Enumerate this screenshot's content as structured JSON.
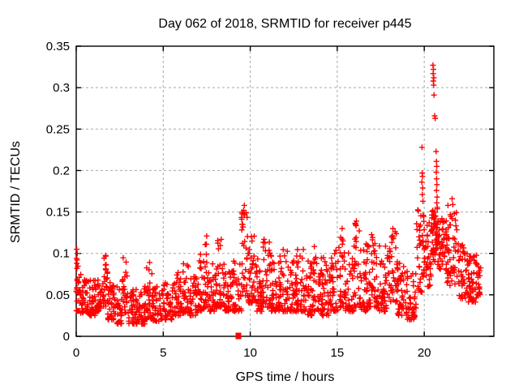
{
  "chart_data": {
    "type": "scatter",
    "title": "Day 062 of 2018, SRMTID for receiver p445",
    "xlabel": "GPS time / hours",
    "ylabel": "SRMTID / TECUs",
    "xlim": [
      0,
      24
    ],
    "ylim": [
      0,
      0.35
    ],
    "xticks": {
      "values": [
        0,
        5,
        10,
        15,
        20
      ],
      "labels": [
        "0",
        "5",
        "10",
        "15",
        "20"
      ]
    },
    "yticks": {
      "values": [
        0,
        0.05,
        0.1,
        0.15,
        0.2,
        0.25,
        0.3,
        0.35
      ],
      "labels": [
        "0",
        "0.05",
        "0.1",
        "0.15",
        "0.2",
        "0.25",
        "0.3",
        "0.35"
      ]
    },
    "grid": true,
    "legend": "none",
    "marker": "plus",
    "marker_color": "#ff0000",
    "grid_color": "#a8a8a8",
    "border_color": "#000000",
    "background_color": "#ffffff",
    "seed": 42,
    "clusters_format": "[x_start_hours, x_end_hours, point_count, y_min_TECUs, y_max_TECUs, crowding_exponent_toward_y_min]",
    "clusters": [
      [
        0.0,
        0.2,
        22,
        0.03,
        0.105,
        1.5
      ],
      [
        0.2,
        0.7,
        42,
        0.028,
        0.075,
        1.8
      ],
      [
        0.7,
        1.2,
        40,
        0.025,
        0.068,
        1.8
      ],
      [
        1.2,
        1.55,
        26,
        0.03,
        0.072,
        1.8
      ],
      [
        1.55,
        1.8,
        26,
        0.035,
        0.1,
        1.6
      ],
      [
        1.8,
        2.3,
        40,
        0.02,
        0.068,
        1.8
      ],
      [
        2.3,
        2.65,
        26,
        0.015,
        0.06,
        1.8
      ],
      [
        2.65,
        2.95,
        26,
        0.028,
        0.097,
        1.6
      ],
      [
        2.95,
        3.45,
        40,
        0.015,
        0.058,
        1.8
      ],
      [
        3.45,
        3.95,
        40,
        0.015,
        0.062,
        1.8
      ],
      [
        3.95,
        4.4,
        34,
        0.02,
        0.092,
        1.7
      ],
      [
        4.4,
        5.0,
        46,
        0.018,
        0.06,
        1.8
      ],
      [
        5.0,
        5.6,
        46,
        0.02,
        0.066,
        1.8
      ],
      [
        5.6,
        6.05,
        34,
        0.025,
        0.078,
        1.8
      ],
      [
        6.05,
        6.45,
        30,
        0.028,
        0.088,
        1.7
      ],
      [
        6.45,
        6.95,
        36,
        0.025,
        0.072,
        1.8
      ],
      [
        6.95,
        7.35,
        30,
        0.03,
        0.102,
        1.7
      ],
      [
        7.35,
        7.65,
        24,
        0.035,
        0.122,
        1.6
      ],
      [
        7.65,
        8.1,
        36,
        0.03,
        0.088,
        1.8
      ],
      [
        8.1,
        8.5,
        30,
        0.035,
        0.117,
        1.7
      ],
      [
        8.5,
        9.0,
        38,
        0.03,
        0.082,
        1.8
      ],
      [
        9.0,
        9.5,
        34,
        0.03,
        0.092,
        1.8
      ],
      [
        9.5,
        9.85,
        30,
        0.048,
        0.158,
        1.3
      ],
      [
        9.85,
        10.25,
        34,
        0.04,
        0.122,
        1.7
      ],
      [
        10.25,
        10.7,
        38,
        0.03,
        0.1,
        1.8
      ],
      [
        10.7,
        11.15,
        34,
        0.035,
        0.122,
        1.7
      ],
      [
        11.15,
        11.65,
        40,
        0.03,
        0.1,
        1.8
      ],
      [
        11.65,
        12.15,
        40,
        0.03,
        0.106,
        1.8
      ],
      [
        12.15,
        12.65,
        40,
        0.03,
        0.092,
        1.8
      ],
      [
        12.65,
        13.15,
        40,
        0.03,
        0.107,
        1.8
      ],
      [
        13.15,
        13.65,
        40,
        0.025,
        0.092,
        1.8
      ],
      [
        13.65,
        14.05,
        30,
        0.03,
        0.116,
        1.7
      ],
      [
        14.05,
        14.55,
        40,
        0.025,
        0.097,
        1.8
      ],
      [
        14.55,
        15.05,
        40,
        0.03,
        0.106,
        1.8
      ],
      [
        15.05,
        15.45,
        30,
        0.035,
        0.131,
        1.6
      ],
      [
        15.45,
        15.95,
        40,
        0.03,
        0.102,
        1.8
      ],
      [
        15.95,
        16.35,
        30,
        0.035,
        0.14,
        1.6
      ],
      [
        16.35,
        16.85,
        40,
        0.03,
        0.112,
        1.8
      ],
      [
        16.85,
        17.35,
        40,
        0.035,
        0.126,
        1.8
      ],
      [
        17.35,
        17.85,
        40,
        0.03,
        0.116,
        1.8
      ],
      [
        17.85,
        18.45,
        44,
        0.04,
        0.131,
        1.7
      ],
      [
        18.45,
        19.0,
        42,
        0.025,
        0.092,
        1.8
      ],
      [
        19.0,
        19.55,
        40,
        0.02,
        0.082,
        1.8
      ],
      [
        19.55,
        19.9,
        28,
        0.05,
        0.156,
        1.3
      ],
      [
        19.9,
        20.1,
        18,
        0.06,
        0.15,
        1.2
      ],
      [
        20.1,
        20.42,
        28,
        0.06,
        0.14,
        1.5
      ],
      [
        20.42,
        20.78,
        48,
        0.085,
        0.156,
        0.85
      ],
      [
        20.78,
        21.3,
        46,
        0.08,
        0.148,
        1.2
      ],
      [
        21.3,
        21.9,
        46,
        0.06,
        0.155,
        1.4
      ],
      [
        21.9,
        22.5,
        44,
        0.045,
        0.112,
        1.7
      ],
      [
        22.5,
        23.0,
        48,
        0.04,
        0.098,
        1.6
      ],
      [
        23.0,
        23.25,
        18,
        0.048,
        0.09,
        1.6
      ]
    ],
    "peak_points": [
      [
        0.03,
        0.105
      ],
      [
        0.06,
        0.1
      ],
      [
        0.02,
        0.094
      ],
      [
        7.5,
        0.121
      ],
      [
        9.62,
        0.152
      ],
      [
        9.66,
        0.158
      ],
      [
        9.64,
        0.148
      ],
      [
        16.1,
        0.139
      ],
      [
        18.2,
        0.13
      ],
      [
        19.87,
        0.228
      ],
      [
        19.88,
        0.197
      ],
      [
        19.9,
        0.193
      ],
      [
        19.86,
        0.186
      ],
      [
        19.91,
        0.179
      ],
      [
        19.89,
        0.171
      ],
      [
        19.92,
        0.163
      ],
      [
        20.5,
        0.327
      ],
      [
        20.53,
        0.322
      ],
      [
        20.51,
        0.317
      ],
      [
        20.55,
        0.312
      ],
      [
        20.52,
        0.308
      ],
      [
        20.54,
        0.303
      ],
      [
        20.56,
        0.291
      ],
      [
        20.6,
        0.266
      ],
      [
        20.63,
        0.263
      ],
      [
        20.68,
        0.223
      ],
      [
        20.7,
        0.211
      ],
      [
        20.72,
        0.205
      ],
      [
        20.69,
        0.198
      ],
      [
        20.71,
        0.19
      ],
      [
        20.73,
        0.183
      ],
      [
        20.7,
        0.176
      ],
      [
        20.74,
        0.168
      ],
      [
        20.72,
        0.161
      ],
      [
        21.6,
        0.166
      ],
      [
        21.64,
        0.159
      ],
      [
        21.36,
        0.158
      ]
    ],
    "zero_marker": {
      "x": 9.32,
      "y": 0,
      "marker": "filled-square"
    }
  }
}
